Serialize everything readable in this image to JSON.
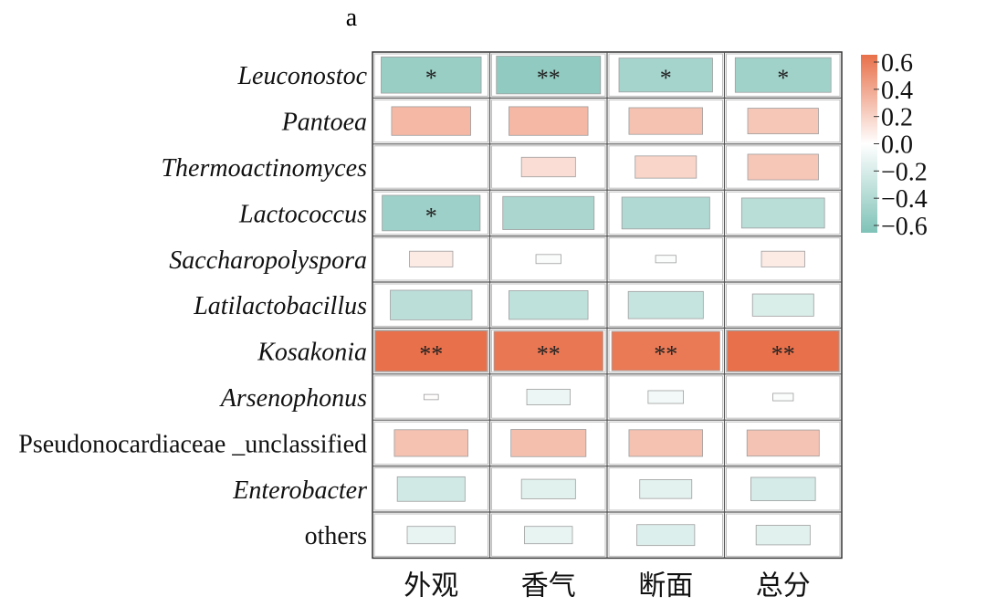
{
  "chart_data": {
    "type": "heatmap",
    "panel_label": "a",
    "rows": [
      {
        "name": "Leuconostoc",
        "italic": true
      },
      {
        "name": "Pantoea",
        "italic": true
      },
      {
        "name": "Thermoactinomyces",
        "italic": true
      },
      {
        "name": "Lactococcus",
        "italic": true
      },
      {
        "name": "Saccharopolyspora",
        "italic": true
      },
      {
        "name": "Latilactobacillus",
        "italic": true
      },
      {
        "name": "Kosakonia",
        "italic": true
      },
      {
        "name": "Arsenophonus",
        "italic": true
      },
      {
        "name": "Pseudonocardiaceae _unclassified",
        "italic": false
      },
      {
        "name": "Enterobacter",
        "italic": true
      },
      {
        "name": "others",
        "italic": false
      }
    ],
    "columns": [
      "外观",
      "香气",
      "断面",
      "总分"
    ],
    "values": [
      [
        -0.48,
        -0.52,
        -0.42,
        -0.44
      ],
      [
        0.3,
        0.3,
        0.26,
        0.24
      ],
      [
        0.0,
        0.14,
        0.18,
        0.24
      ],
      [
        -0.46,
        -0.4,
        -0.37,
        -0.33
      ],
      [
        0.09,
        -0.03,
        -0.02,
        0.09
      ],
      [
        -0.32,
        -0.3,
        -0.27,
        -0.18
      ],
      [
        0.62,
        0.57,
        0.56,
        0.62
      ],
      [
        0.01,
        -0.09,
        -0.06,
        -0.02
      ],
      [
        0.26,
        0.27,
        0.26,
        0.25
      ],
      [
        -0.22,
        -0.14,
        -0.13,
        -0.2
      ],
      [
        -0.11,
        -0.11,
        -0.16,
        -0.14
      ]
    ],
    "significance": [
      [
        "*",
        "**",
        "*",
        "*"
      ],
      [
        "",
        "",
        "",
        ""
      ],
      [
        "",
        "",
        "",
        ""
      ],
      [
        "*",
        "",
        "",
        ""
      ],
      [
        "",
        "",
        "",
        ""
      ],
      [
        "",
        "",
        "",
        ""
      ],
      [
        "**",
        "**",
        "**",
        "**"
      ],
      [
        "",
        "",
        "",
        ""
      ],
      [
        "",
        "",
        "",
        ""
      ],
      [
        "",
        "",
        "",
        ""
      ],
      [
        "",
        "",
        "",
        ""
      ]
    ],
    "colorbar": {
      "ticks": [
        "0.6",
        "0.4",
        "0.2",
        "0.0",
        "−0.2",
        "−0.4",
        "−0.6"
      ],
      "range": [
        -0.6,
        0.6
      ],
      "positive_color": "#e8704a",
      "zero_color": "#ffffff",
      "negative_color": "#7fc2b7"
    }
  }
}
